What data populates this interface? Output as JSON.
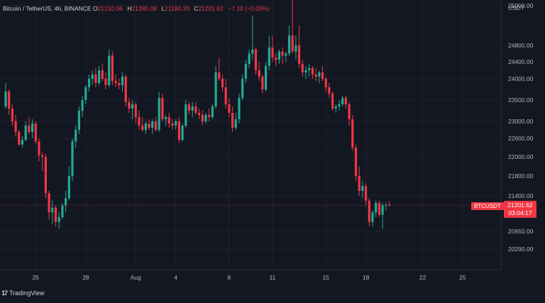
{
  "header": {
    "symbol": "Bitcoin / TetherUS, 4h, BINANCE",
    "o_label": "O",
    "o_value": "21210.06",
    "h_label": "H",
    "h_value": "21285.08",
    "l_label": "L",
    "l_value": "21180.33",
    "c_label": "C",
    "c_value": "21201.62",
    "change": "−7.10 (−0.03%)"
  },
  "brand": {
    "mark": "17",
    "name": "TradingView"
  },
  "price_axis": {
    "unit": "USDT"
  },
  "last_price": {
    "symbol": "BTCUSDT",
    "price": "21201.62",
    "countdown": "03:04:17"
  },
  "colors": {
    "up": "#22ab94",
    "down": "#f23645",
    "background": "#131722",
    "grid": "#1e222d",
    "text": "#b2b5be"
  },
  "chart_data": {
    "type": "candlestick",
    "ylim": [
      20000,
      25300
    ],
    "y_ticks": [
      {
        "value": 25000,
        "label": "25000.00"
      },
      {
        "value": 24800,
        "label": "24800.00"
      },
      {
        "value": 24400,
        "label": "24400.00"
      },
      {
        "value": 24000,
        "label": "24000.00"
      },
      {
        "value": 23500,
        "label": "23500.00"
      },
      {
        "value": 23000,
        "label": "23000.00"
      },
      {
        "value": 22600,
        "label": "22600.00"
      },
      {
        "value": 22000,
        "label": "22000.00"
      },
      {
        "value": 21800,
        "label": "21800.00"
      },
      {
        "value": 21400,
        "label": "21400.00"
      },
      {
        "value": 20650,
        "label": "20650.00"
      },
      {
        "value": 20290,
        "label": "20290.00"
      }
    ],
    "x_ticks": [
      {
        "bar": 9,
        "label": "25"
      },
      {
        "bar": 24,
        "label": "28"
      },
      {
        "bar": 39,
        "label": "Aug"
      },
      {
        "bar": 51,
        "label": "4"
      },
      {
        "bar": 67,
        "label": "8"
      },
      {
        "bar": 80,
        "label": "11"
      },
      {
        "bar": 96,
        "label": "15"
      },
      {
        "bar": 108,
        "label": "18"
      },
      {
        "bar": 125,
        "label": "22"
      },
      {
        "bar": 137,
        "label": "25"
      }
    ],
    "last_price": 21201.62,
    "candles": [
      [
        23350,
        23900,
        23300,
        23700
      ],
      [
        23700,
        23750,
        23150,
        23300
      ],
      [
        23300,
        23400,
        22900,
        23000
      ],
      [
        23000,
        23150,
        22650,
        22750
      ],
      [
        22750,
        22800,
        22350,
        22400
      ],
      [
        22400,
        22650,
        22300,
        22550
      ],
      [
        22550,
        23000,
        22500,
        22900
      ],
      [
        22900,
        23100,
        22700,
        22750
      ],
      [
        22750,
        23050,
        22600,
        22950
      ],
      [
        22950,
        23000,
        22400,
        22500
      ],
      [
        22500,
        22600,
        21950,
        22050
      ],
      [
        22050,
        22150,
        21850,
        22000
      ],
      [
        22000,
        22100,
        21350,
        21450
      ],
      [
        21450,
        21500,
        20900,
        21050
      ],
      [
        21050,
        21300,
        20800,
        21150
      ],
      [
        21150,
        21200,
        20750,
        20850
      ],
      [
        20850,
        21050,
        20700,
        20950
      ],
      [
        20950,
        21250,
        20900,
        21200
      ],
      [
        21200,
        21500,
        21050,
        21350
      ],
      [
        21350,
        21900,
        21300,
        21800
      ],
      [
        21800,
        22600,
        21700,
        22500
      ],
      [
        22500,
        22900,
        22300,
        22800
      ],
      [
        22800,
        23350,
        22700,
        23250
      ],
      [
        23250,
        23600,
        23100,
        23500
      ],
      [
        23500,
        23850,
        23400,
        23800
      ],
      [
        23800,
        24100,
        23700,
        24000
      ],
      [
        24000,
        24200,
        23850,
        24100
      ],
      [
        24100,
        24250,
        23800,
        23900
      ],
      [
        23900,
        24300,
        23850,
        24200
      ],
      [
        24200,
        24350,
        23950,
        24000
      ],
      [
        24000,
        24150,
        23750,
        23850
      ],
      [
        23850,
        24700,
        23800,
        24550
      ],
      [
        24550,
        24650,
        23850,
        23950
      ],
      [
        23950,
        24100,
        23800,
        23900
      ],
      [
        23900,
        24000,
        23750,
        23850
      ],
      [
        23850,
        24150,
        23700,
        24050
      ],
      [
        24050,
        24100,
        23350,
        23450
      ],
      [
        23450,
        23550,
        23200,
        23300
      ],
      [
        23300,
        23500,
        23050,
        23400
      ],
      [
        23400,
        23450,
        22950,
        23100
      ],
      [
        23100,
        23250,
        22800,
        22900
      ],
      [
        22900,
        23100,
        22750,
        22800
      ],
      [
        22800,
        23000,
        22700,
        22950
      ],
      [
        22950,
        23050,
        22800,
        22850
      ],
      [
        22850,
        23050,
        22700,
        23000
      ],
      [
        23000,
        23100,
        22750,
        22800
      ],
      [
        22800,
        23700,
        22750,
        23550
      ],
      [
        23550,
        23650,
        23000,
        23050
      ],
      [
        23050,
        23150,
        22900,
        23100
      ],
      [
        23100,
        23200,
        22850,
        22950
      ],
      [
        22950,
        23050,
        22800,
        22900
      ],
      [
        22900,
        23050,
        22800,
        23000
      ],
      [
        23000,
        23100,
        22450,
        22550
      ],
      [
        22550,
        22950,
        22500,
        22900
      ],
      [
        22900,
        23500,
        22850,
        23400
      ],
      [
        23400,
        23450,
        23150,
        23250
      ],
      [
        23250,
        23450,
        23100,
        23350
      ],
      [
        23350,
        23450,
        23150,
        23200
      ],
      [
        23200,
        23300,
        23050,
        23150
      ],
      [
        23150,
        23250,
        22900,
        23000
      ],
      [
        23000,
        23200,
        22950,
        23150
      ],
      [
        23150,
        23300,
        23000,
        23100
      ],
      [
        23100,
        23400,
        23050,
        23350
      ],
      [
        23350,
        24300,
        23300,
        24150
      ],
      [
        24150,
        24500,
        23950,
        24000
      ],
      [
        24000,
        24100,
        23700,
        23800
      ],
      [
        23800,
        24000,
        23300,
        23400
      ],
      [
        23400,
        23550,
        23100,
        23200
      ],
      [
        23200,
        23350,
        22750,
        22850
      ],
      [
        22850,
        23200,
        22800,
        23050
      ],
      [
        23050,
        23650,
        22950,
        23550
      ],
      [
        23550,
        24100,
        23500,
        24000
      ],
      [
        24000,
        24450,
        23900,
        24350
      ],
      [
        24350,
        24700,
        24250,
        24600
      ],
      [
        24600,
        24950,
        24450,
        24700
      ],
      [
        24700,
        24750,
        24100,
        24200
      ],
      [
        24200,
        24400,
        23950,
        24050
      ],
      [
        24050,
        24100,
        23650,
        23750
      ],
      [
        23750,
        24400,
        23700,
        24300
      ],
      [
        24300,
        24850,
        24200,
        24750
      ],
      [
        24750,
        24850,
        24400,
        24500
      ],
      [
        24500,
        24600,
        24300,
        24450
      ],
      [
        24450,
        24700,
        24350,
        24650
      ],
      [
        24650,
        24750,
        24350,
        24550
      ],
      [
        24550,
        24650,
        24400,
        24600
      ],
      [
        24600,
        24900,
        24550,
        24850
      ],
      [
        24850,
        25050,
        24600,
        24650
      ],
      [
        24650,
        24850,
        24450,
        24800
      ],
      [
        24800,
        24900,
        24250,
        24350
      ],
      [
        24350,
        24450,
        24050,
        24150
      ],
      [
        24150,
        24300,
        24000,
        24200
      ],
      [
        24200,
        24350,
        24050,
        24250
      ],
      [
        24250,
        24300,
        24000,
        24100
      ],
      [
        24100,
        24250,
        23950,
        24050
      ],
      [
        24050,
        24200,
        23900,
        24150
      ],
      [
        24150,
        24300,
        23950,
        24000
      ],
      [
        24000,
        24050,
        23700,
        23800
      ],
      [
        23800,
        23900,
        23550,
        23650
      ],
      [
        23650,
        23700,
        23250,
        23300
      ],
      [
        23300,
        23400,
        23200,
        23350
      ],
      [
        23350,
        23500,
        23250,
        23400
      ],
      [
        23400,
        23600,
        23350,
        23550
      ],
      [
        23550,
        23600,
        23300,
        23400
      ],
      [
        23400,
        23450,
        22900,
        23050
      ],
      [
        23050,
        23150,
        22200,
        22300
      ],
      [
        22300,
        22400,
        21700,
        21800
      ],
      [
        21800,
        21900,
        21400,
        21500
      ],
      [
        21500,
        21700,
        21350,
        21600
      ],
      [
        21600,
        21650,
        21200,
        21300
      ],
      [
        21300,
        21350,
        20750,
        20850
      ],
      [
        20850,
        21100,
        20750,
        21050
      ],
      [
        21050,
        21300,
        20950,
        21250
      ],
      [
        21250,
        21300,
        20950,
        21000
      ],
      [
        21000,
        21250,
        20700,
        21200
      ],
      [
        21200,
        21250,
        21100,
        21210
      ],
      [
        21210,
        21285,
        21180,
        21201.62
      ]
    ]
  }
}
